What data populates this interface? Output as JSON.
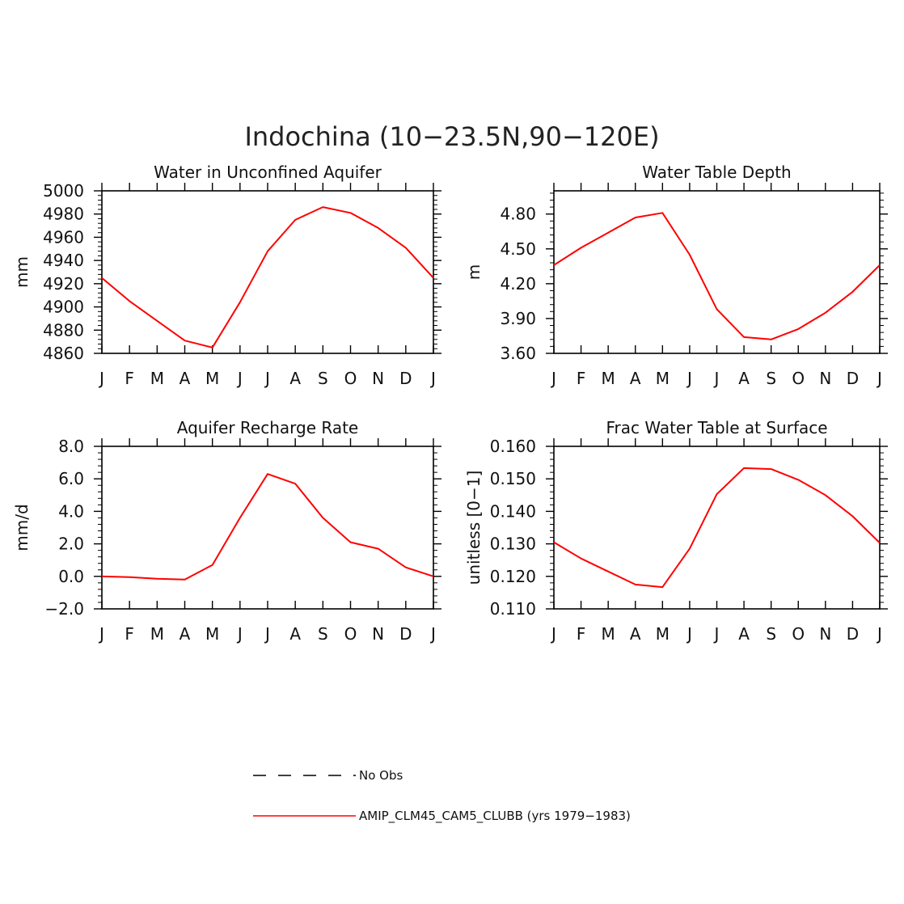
{
  "figure": {
    "title": "Indochina (10−23.5N,90−120E)"
  },
  "legend": [
    {
      "label": "No Obs",
      "color": "#000000",
      "dash": true
    },
    {
      "label": "AMIP_CLM45_CAM5_CLUBB (yrs 1979−1983)",
      "color": "#ff0000",
      "dash": false
    }
  ],
  "chart_data": [
    {
      "type": "line",
      "title": "Water in Unconfined Aquifer",
      "xlabel": "",
      "ylabel": "mm",
      "categories": [
        "J",
        "F",
        "M",
        "A",
        "M",
        "J",
        "J",
        "A",
        "S",
        "O",
        "N",
        "D",
        "J"
      ],
      "ylim": [
        4860,
        5000
      ],
      "yticks": [
        4860,
        4880,
        4900,
        4920,
        4940,
        4960,
        4980,
        5000
      ],
      "ytick_labels": [
        "4860",
        "4880",
        "4900",
        "4920",
        "4940",
        "4960",
        "4980",
        "5000"
      ],
      "series": [
        {
          "values": [
            4925,
            4905,
            4888,
            4871,
            4865,
            4904,
            4948,
            4975,
            4986,
            4981,
            4968,
            4951,
            4925
          ]
        }
      ]
    },
    {
      "type": "line",
      "title": "Water Table Depth",
      "xlabel": "",
      "ylabel": "m",
      "categories": [
        "J",
        "F",
        "M",
        "A",
        "M",
        "J",
        "J",
        "A",
        "S",
        "O",
        "N",
        "D",
        "J"
      ],
      "ylim": [
        3.6,
        5.0
      ],
      "yticks": [
        3.6,
        3.9,
        4.2,
        4.5,
        4.8
      ],
      "ytick_labels": [
        "3.60",
        "3.90",
        "4.20",
        "4.50",
        "4.80"
      ],
      "series": [
        {
          "values": [
            4.36,
            4.51,
            4.64,
            4.77,
            4.81,
            4.45,
            3.98,
            3.74,
            3.72,
            3.81,
            3.95,
            4.13,
            4.36
          ]
        }
      ]
    },
    {
      "type": "line",
      "title": "Aquifer Recharge Rate",
      "xlabel": "",
      "ylabel": "mm/d",
      "categories": [
        "J",
        "F",
        "M",
        "A",
        "M",
        "J",
        "J",
        "A",
        "S",
        "O",
        "N",
        "D",
        "J"
      ],
      "ylim": [
        -2.0,
        8.0
      ],
      "yticks": [
        -2.0,
        0.0,
        2.0,
        4.0,
        6.0,
        8.0
      ],
      "ytick_labels": [
        "−2.0",
        "0.0",
        "2.0",
        "4.0",
        "6.0",
        "8.0"
      ],
      "series": [
        {
          "values": [
            0.0,
            -0.05,
            -0.15,
            -0.2,
            0.7,
            3.6,
            6.3,
            5.7,
            3.6,
            2.1,
            1.7,
            0.55,
            0.0
          ]
        }
      ]
    },
    {
      "type": "line",
      "title": "Frac Water Table at Surface",
      "xlabel": "",
      "ylabel": "unitless [0−1]",
      "categories": [
        "J",
        "F",
        "M",
        "A",
        "M",
        "J",
        "J",
        "A",
        "S",
        "O",
        "N",
        "D",
        "J"
      ],
      "ylim": [
        0.11,
        0.16
      ],
      "yticks": [
        0.11,
        0.12,
        0.13,
        0.14,
        0.15,
        0.16
      ],
      "ytick_labels": [
        "0.110",
        "0.120",
        "0.130",
        "0.140",
        "0.150",
        "0.160"
      ],
      "series": [
        {
          "values": [
            0.1305,
            0.1255,
            0.1215,
            0.1175,
            0.1167,
            0.1285,
            0.1453,
            0.1533,
            0.153,
            0.1497,
            0.145,
            0.1385,
            0.1303
          ]
        }
      ]
    }
  ]
}
